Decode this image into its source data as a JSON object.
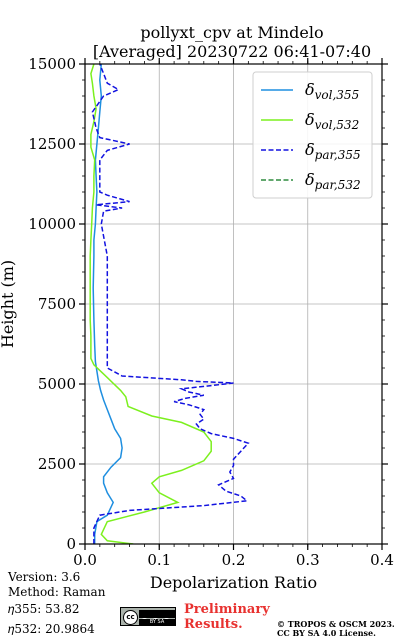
{
  "chart_data": {
    "type": "line",
    "title": [
      "pollyxt_cpv at Mindelo",
      "[Averaged] 20230722 06:41-07:40"
    ],
    "xlabel": "Depolarization Ratio",
    "ylabel": "Height (m)",
    "xlim": [
      0,
      0.4
    ],
    "ylim": [
      0,
      15000
    ],
    "xticks": [
      "0.0",
      "0.1",
      "0.2",
      "0.3",
      "0.4"
    ],
    "yticks": [
      "0",
      "2500",
      "5000",
      "7500",
      "10000",
      "12500",
      "15000"
    ],
    "xtick_values": [
      0,
      0.1,
      0.2,
      0.3,
      0.4
    ],
    "ytick_values": [
      0,
      2500,
      5000,
      7500,
      10000,
      12500,
      15000
    ],
    "grid": true,
    "legend_position": "top-right",
    "series": [
      {
        "name": "δvol,355",
        "legend_base": "δ",
        "legend_sub": "vol,355",
        "color": "#1f8fe0",
        "dash": "solid",
        "points": [
          [
            0.013,
            0
          ],
          [
            0.013,
            300
          ],
          [
            0.016,
            700
          ],
          [
            0.03,
            900
          ],
          [
            0.038,
            1300
          ],
          [
            0.03,
            1600
          ],
          [
            0.025,
            1900
          ],
          [
            0.025,
            2100
          ],
          [
            0.035,
            2400
          ],
          [
            0.048,
            2700
          ],
          [
            0.05,
            3000
          ],
          [
            0.048,
            3300
          ],
          [
            0.04,
            3600
          ],
          [
            0.035,
            3900
          ],
          [
            0.03,
            4200
          ],
          [
            0.025,
            4500
          ],
          [
            0.021,
            4800
          ],
          [
            0.018,
            5100
          ],
          [
            0.016,
            5400
          ],
          [
            0.014,
            5700
          ],
          [
            0.013,
            6200
          ],
          [
            0.012,
            7000
          ],
          [
            0.011,
            8000
          ],
          [
            0.012,
            9000
          ],
          [
            0.012,
            9500
          ],
          [
            0.014,
            10000
          ],
          [
            0.015,
            10500
          ],
          [
            0.016,
            11000
          ],
          [
            0.015,
            11500
          ],
          [
            0.014,
            12000
          ],
          [
            0.016,
            12500
          ],
          [
            0.018,
            13000
          ],
          [
            0.02,
            13500
          ],
          [
            0.022,
            14000
          ],
          [
            0.02,
            14500
          ],
          [
            0.022,
            15000
          ]
        ]
      },
      {
        "name": "δvol,532",
        "legend_base": "δ",
        "legend_sub": "vol,532",
        "color": "#7cf01e",
        "dash": "solid",
        "points": [
          [
            0.065,
            0
          ],
          [
            0.03,
            100
          ],
          [
            0.022,
            300
          ],
          [
            0.03,
            700
          ],
          [
            0.08,
            1000
          ],
          [
            0.125,
            1300
          ],
          [
            0.1,
            1600
          ],
          [
            0.09,
            1900
          ],
          [
            0.1,
            2100
          ],
          [
            0.13,
            2300
          ],
          [
            0.16,
            2600
          ],
          [
            0.17,
            2900
          ],
          [
            0.17,
            3200
          ],
          [
            0.16,
            3500
          ],
          [
            0.13,
            3800
          ],
          [
            0.09,
            4000
          ],
          [
            0.058,
            4300
          ],
          [
            0.055,
            4600
          ],
          [
            0.048,
            4800
          ],
          [
            0.03,
            5200
          ],
          [
            0.012,
            5600
          ],
          [
            0.008,
            5800
          ],
          [
            0.008,
            6500
          ],
          [
            0.007,
            7000
          ],
          [
            0.007,
            8000
          ],
          [
            0.007,
            9000
          ],
          [
            0.008,
            9500
          ],
          [
            0.009,
            10000
          ],
          [
            0.01,
            10500
          ],
          [
            0.012,
            11000
          ],
          [
            0.012,
            11500
          ],
          [
            0.013,
            12000
          ],
          [
            0.008,
            12400
          ],
          [
            0.008,
            12800
          ],
          [
            0.012,
            13200
          ],
          [
            0.015,
            13600
          ],
          [
            0.012,
            14000
          ],
          [
            0.01,
            14400
          ],
          [
            0.008,
            14700
          ],
          [
            0.012,
            15000
          ]
        ]
      },
      {
        "name": "δpar,355",
        "legend_base": "δ",
        "legend_sub": "par,355",
        "color": "#1212e0",
        "dash": "dashed",
        "points": [
          [
            0.012,
            0
          ],
          [
            0.012,
            500
          ],
          [
            0.02,
            900
          ],
          [
            0.06,
            1050
          ],
          [
            0.16,
            1200
          ],
          [
            0.218,
            1350
          ],
          [
            0.21,
            1500
          ],
          [
            0.19,
            1650
          ],
          [
            0.18,
            1850
          ],
          [
            0.2,
            2050
          ],
          [
            0.195,
            2250
          ],
          [
            0.2,
            2450
          ],
          [
            0.2,
            2650
          ],
          [
            0.21,
            2900
          ],
          [
            0.22,
            3150
          ],
          [
            0.2,
            3300
          ],
          [
            0.17,
            3450
          ],
          [
            0.155,
            3600
          ],
          [
            0.15,
            3750
          ],
          [
            0.16,
            3900
          ],
          [
            0.155,
            4050
          ],
          [
            0.16,
            4200
          ],
          [
            0.14,
            4350
          ],
          [
            0.12,
            4450
          ],
          [
            0.135,
            4550
          ],
          [
            0.16,
            4650
          ],
          [
            0.14,
            4750
          ],
          [
            0.13,
            4850
          ],
          [
            0.17,
            4950
          ],
          [
            0.2,
            5030
          ],
          [
            0.15,
            5080
          ],
          [
            0.13,
            5130
          ],
          [
            0.05,
            5250
          ],
          [
            0.03,
            5500
          ],
          [
            0.03,
            9000
          ],
          [
            0.022,
            10000
          ],
          [
            0.025,
            10400
          ],
          [
            0.05,
            10500
          ],
          [
            0.015,
            10600
          ],
          [
            0.06,
            10700
          ],
          [
            0.03,
            10900
          ],
          [
            0.02,
            11000
          ],
          [
            0.02,
            11500
          ],
          [
            0.02,
            12000
          ],
          [
            0.03,
            12300
          ],
          [
            0.06,
            12500
          ],
          [
            0.02,
            12700
          ],
          [
            0.015,
            13000
          ],
          [
            0.01,
            13500
          ],
          [
            0.025,
            14000
          ],
          [
            0.045,
            14200
          ],
          [
            0.03,
            14400
          ],
          [
            0.025,
            14700
          ],
          [
            0.02,
            15000
          ]
        ]
      },
      {
        "name": "δpar,532",
        "legend_base": "δ",
        "legend_sub": "par,532",
        "color": "#2e8b3e",
        "dash": "dashed",
        "points": []
      }
    ]
  },
  "footer": {
    "version": "Version: 3.6",
    "method": "Method: Raman",
    "eta355": "𝜂355:  53.82",
    "eta532": "𝜂532: 20.9864",
    "preliminary_line1": "Preliminary",
    "preliminary_line2": "Results.",
    "copyright_line1": "© TROPOS & OSCM 2023.",
    "copyright_line2": "CC BY SA 4.0 License.",
    "license_badge_top": "cc",
    "license_badge_bottom": "BY  SA",
    "license_icon": "creative-commons-icon"
  }
}
